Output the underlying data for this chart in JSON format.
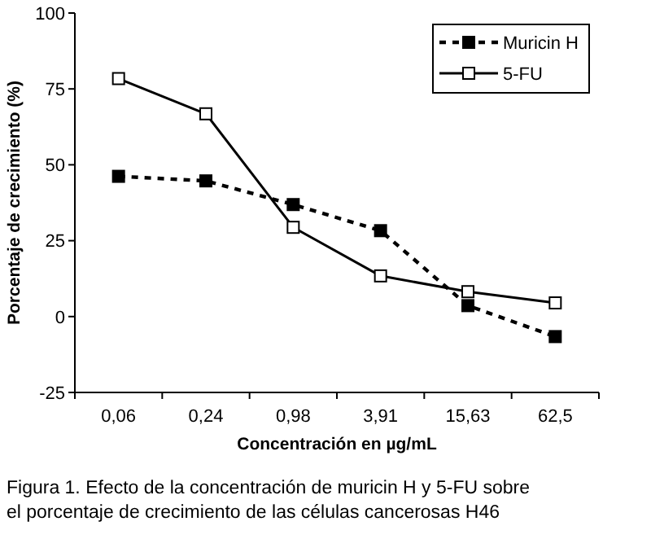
{
  "chart_data": {
    "type": "line",
    "xlabel": "Concentración en µg/mL",
    "ylabel": "Porcentaje de crecimiento (%)",
    "categories": [
      "0,06",
      "0,24",
      "0,98",
      "3,91",
      "15,63",
      "62,5"
    ],
    "series": [
      {
        "name": "Muricin H",
        "color": "#000000",
        "values": [
          46.2,
          44.7,
          36.9,
          28.3,
          3.6,
          -6.6
        ],
        "marker": "square",
        "line_style": "dashed"
      },
      {
        "name": "5-FU",
        "color": "#000000",
        "values": [
          78.4,
          66.8,
          29.4,
          13.4,
          8.2,
          4.5
        ],
        "marker": "square",
        "line_style": "solid"
      }
    ],
    "ylim": [
      -25,
      100
    ],
    "yticks": [
      -25,
      0,
      25,
      50,
      75,
      100
    ],
    "grid": false,
    "legend": "top right",
    "annotations": [
      "Figura 1. Efecto de la concentración de muricin H y 5-FU sobre el porcentaje de crecimiento de las células cancerosas H46"
    ]
  }
}
